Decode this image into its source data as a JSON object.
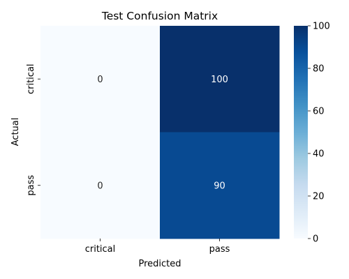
{
  "chart_data": {
    "type": "heatmap",
    "title": "Test Confusion Matrix",
    "xlabel": "Predicted",
    "ylabel": "Actual",
    "x_categories": [
      "critical",
      "pass"
    ],
    "y_categories": [
      "critical",
      "pass"
    ],
    "values": [
      [
        0,
        100
      ],
      [
        0,
        90
      ]
    ],
    "colorbar": {
      "min": 0,
      "max": 100,
      "ticks": [
        0,
        20,
        40,
        60,
        80,
        100
      ]
    },
    "colormap": "Blues",
    "colormap_stops": [
      "#f7fbff",
      "#deebf7",
      "#c6dbef",
      "#9ecae1",
      "#6baed6",
      "#4292c6",
      "#2171b5",
      "#08519c",
      "#08306b"
    ]
  }
}
